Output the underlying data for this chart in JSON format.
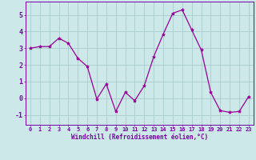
{
  "x": [
    0,
    1,
    2,
    3,
    4,
    5,
    6,
    7,
    8,
    9,
    10,
    11,
    12,
    13,
    14,
    15,
    16,
    17,
    18,
    19,
    20,
    21,
    22,
    23
  ],
  "y": [
    3.0,
    3.1,
    3.1,
    3.6,
    3.3,
    2.4,
    1.9,
    -0.05,
    0.85,
    -0.8,
    0.35,
    -0.15,
    0.75,
    2.5,
    3.85,
    5.1,
    5.3,
    4.1,
    2.9,
    0.35,
    -0.75,
    -0.85,
    -0.8,
    0.1
  ],
  "title": "",
  "xlabel": "Windchill (Refroidissement éolien,°C)",
  "ylabel": "",
  "xlim": [
    -0.5,
    23.5
  ],
  "ylim": [
    -1.6,
    5.8
  ],
  "yticks": [
    -1,
    0,
    1,
    2,
    3,
    4,
    5
  ],
  "xticks": [
    0,
    1,
    2,
    3,
    4,
    5,
    6,
    7,
    8,
    9,
    10,
    11,
    12,
    13,
    14,
    15,
    16,
    17,
    18,
    19,
    20,
    21,
    22,
    23
  ],
  "line_color": "#990099",
  "marker": "*",
  "marker_size": 3,
  "bg_color": "#cce8e8",
  "grid_color": "#aacccc",
  "spine_color": "#7700aa",
  "tick_color": "#7700aa",
  "label_color": "#7700aa",
  "tick_fontsize": 5.0,
  "xlabel_fontsize": 5.5,
  "linewidth": 0.9
}
